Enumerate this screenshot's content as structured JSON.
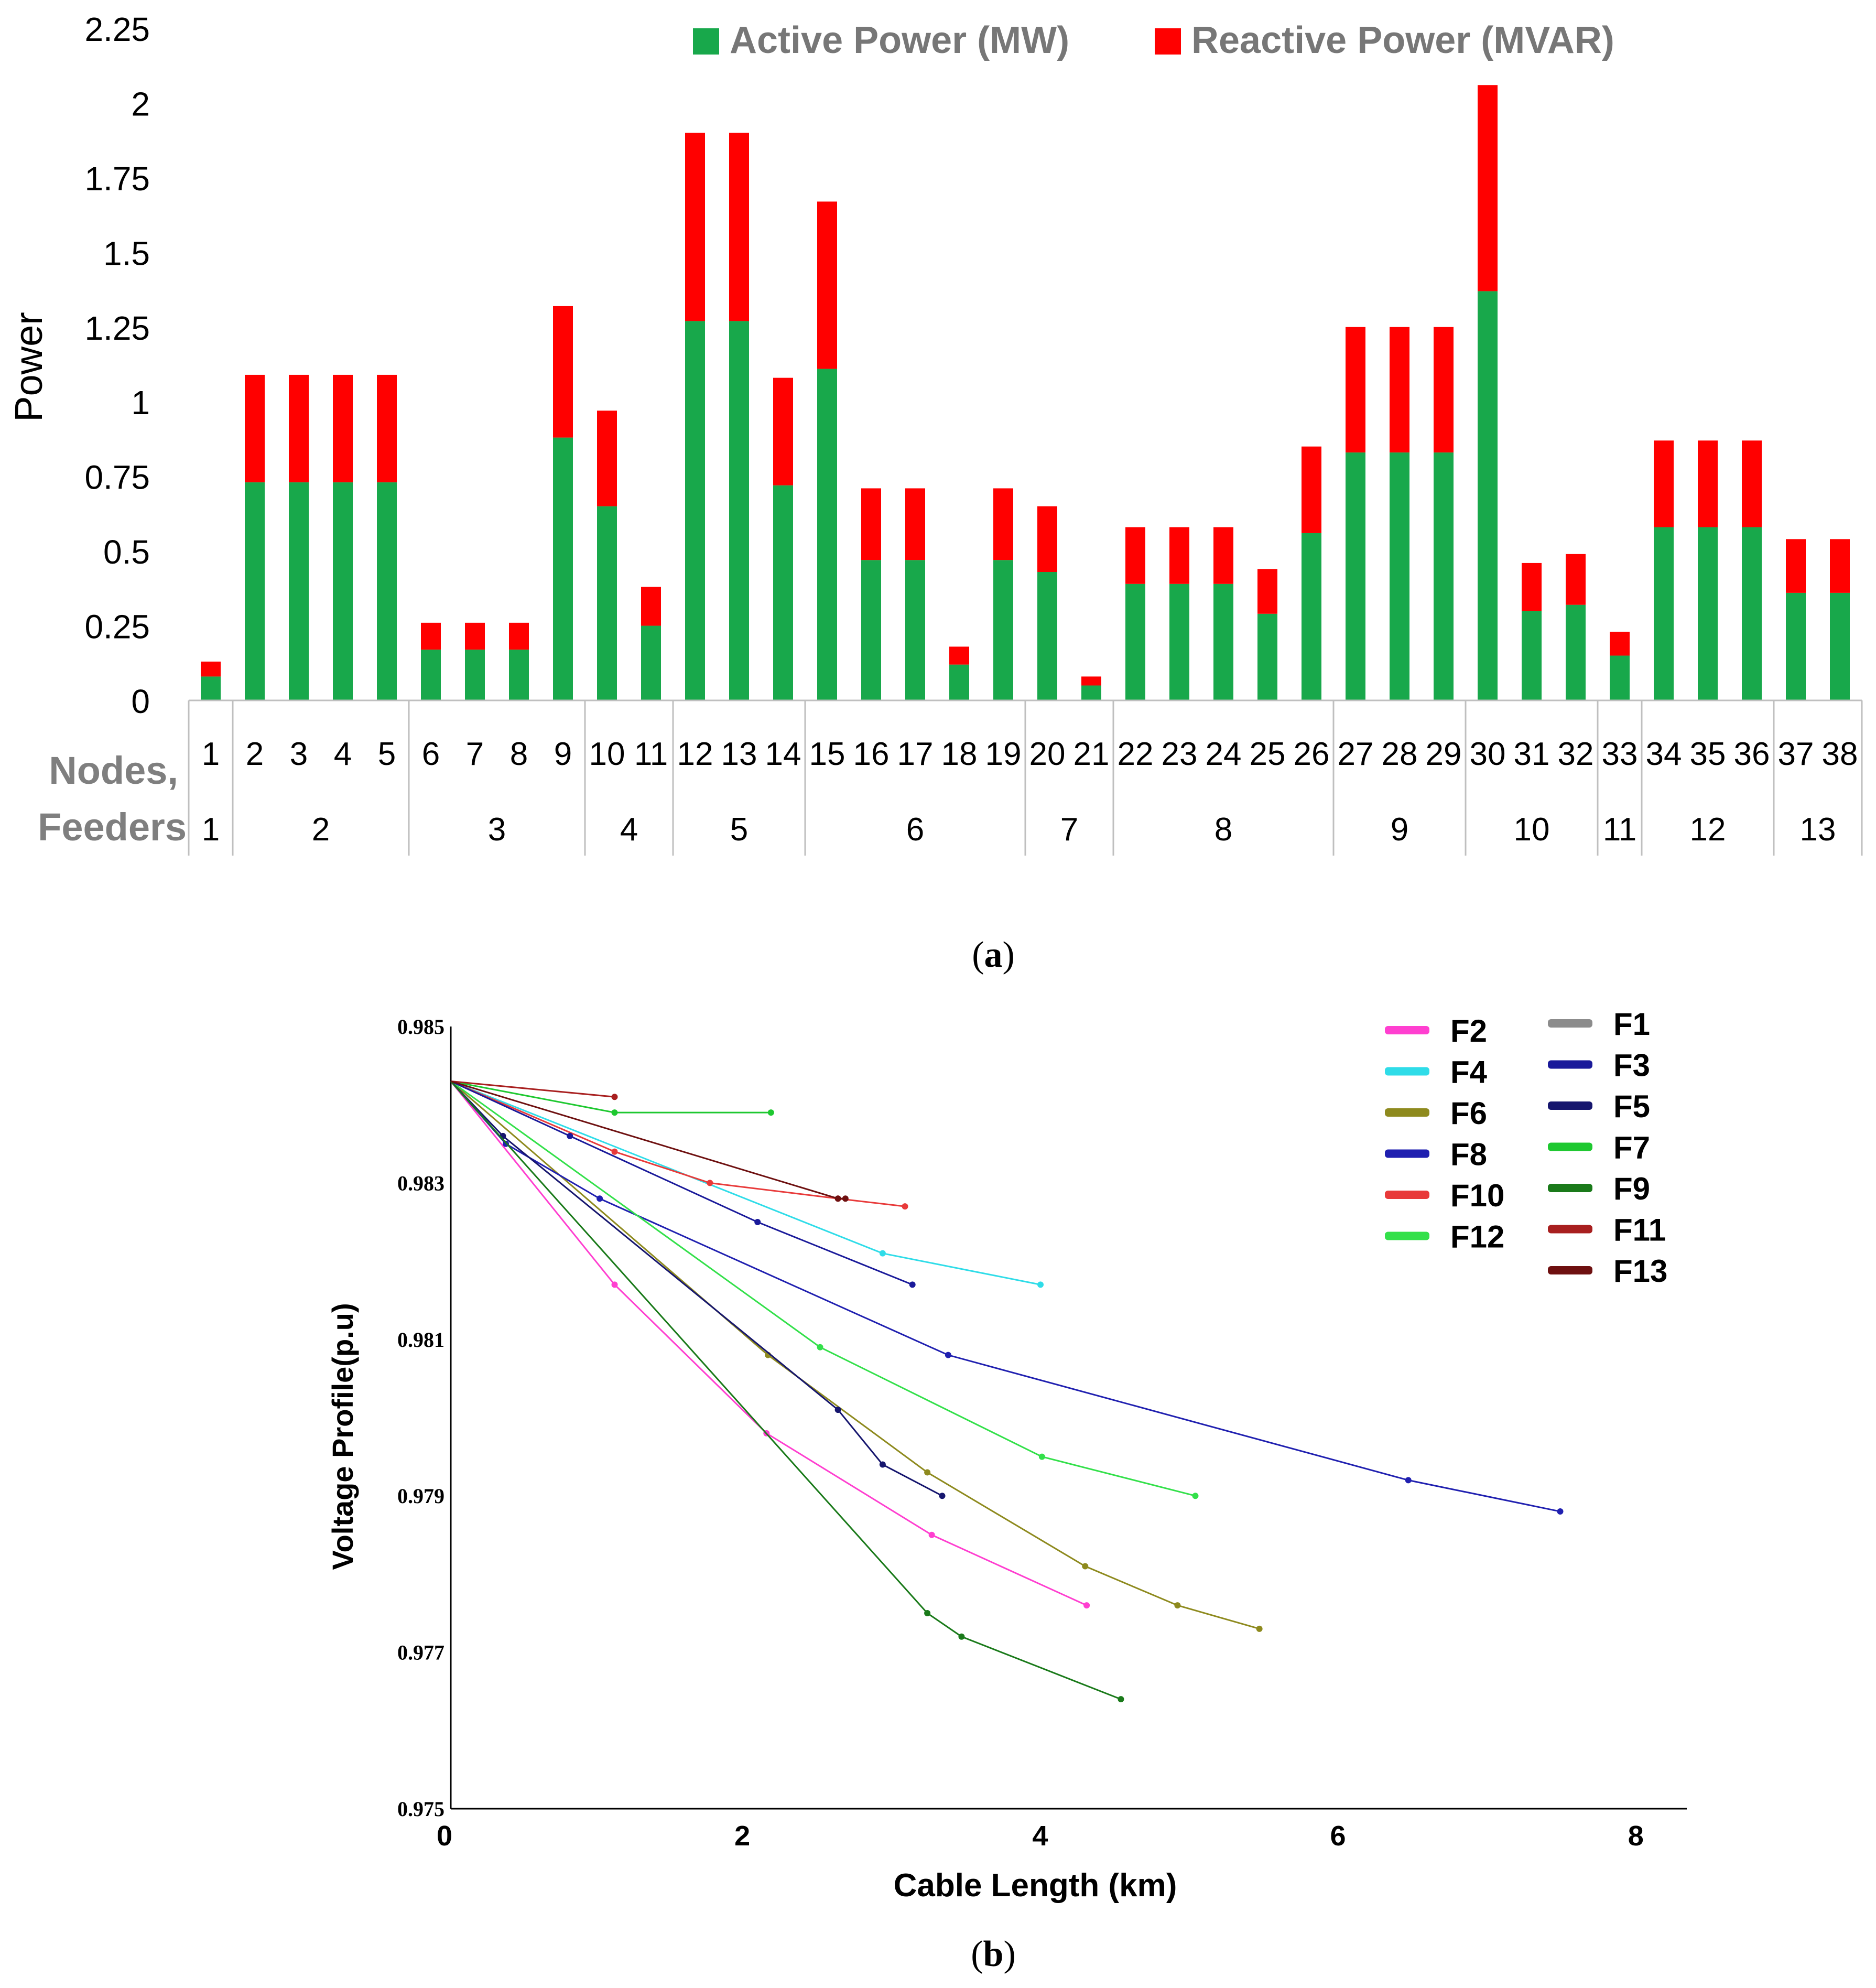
{
  "chart_data": [
    {
      "type": "bar",
      "stacked": true,
      "panel_label": "a",
      "ylabel": "Power",
      "ylim": [
        0,
        2.25
      ],
      "yticks": [
        "0",
        "0.25",
        "0.5",
        "0.75",
        "1",
        "1.25",
        "1.5",
        "1.75",
        "2",
        "2.25"
      ],
      "row_labels": [
        "Nodes,",
        "Feeders"
      ],
      "categories": [
        "1",
        "2",
        "3",
        "4",
        "5",
        "6",
        "7",
        "8",
        "9",
        "10",
        "11",
        "12",
        "13",
        "14",
        "15",
        "16",
        "17",
        "18",
        "19",
        "20",
        "21",
        "22",
        "23",
        "24",
        "25",
        "26",
        "27",
        "28",
        "29",
        "30",
        "31",
        "32",
        "33",
        "34",
        "35",
        "36",
        "37",
        "38"
      ],
      "feeders": [
        {
          "label": "1",
          "nodes": [
            1,
            1
          ]
        },
        {
          "label": "2",
          "nodes": [
            2,
            5
          ]
        },
        {
          "label": "3",
          "nodes": [
            6,
            9
          ]
        },
        {
          "label": "4",
          "nodes": [
            10,
            11
          ]
        },
        {
          "label": "5",
          "nodes": [
            12,
            14
          ]
        },
        {
          "label": "6",
          "nodes": [
            15,
            19
          ]
        },
        {
          "label": "7",
          "nodes": [
            20,
            21
          ]
        },
        {
          "label": "8",
          "nodes": [
            22,
            26
          ]
        },
        {
          "label": "9",
          "nodes": [
            27,
            29
          ]
        },
        {
          "label": "10",
          "nodes": [
            30,
            32
          ]
        },
        {
          "label": "11",
          "nodes": [
            33,
            33
          ]
        },
        {
          "label": "12",
          "nodes": [
            34,
            36
          ]
        },
        {
          "label": "13",
          "nodes": [
            37,
            38
          ]
        }
      ],
      "series": [
        {
          "name": "Active Power (MW)",
          "color": "#18A84B",
          "values": [
            0.08,
            0.73,
            0.73,
            0.73,
            0.73,
            0.17,
            0.17,
            0.17,
            0.88,
            0.65,
            0.25,
            1.27,
            1.27,
            0.72,
            1.11,
            0.47,
            0.47,
            0.12,
            0.47,
            0.43,
            0.05,
            0.39,
            0.39,
            0.39,
            0.29,
            0.56,
            0.83,
            0.83,
            0.83,
            1.37,
            0.3,
            0.32,
            0.15,
            0.58,
            0.58,
            0.58,
            0.36,
            0.36
          ]
        },
        {
          "name": "Reactive Power (MVAR)",
          "color": "#FF0000",
          "values": [
            0.05,
            0.36,
            0.36,
            0.36,
            0.36,
            0.09,
            0.09,
            0.09,
            0.44,
            0.32,
            0.13,
            0.63,
            0.63,
            0.36,
            0.56,
            0.24,
            0.24,
            0.06,
            0.24,
            0.22,
            0.03,
            0.19,
            0.19,
            0.19,
            0.15,
            0.29,
            0.42,
            0.42,
            0.42,
            0.69,
            0.16,
            0.17,
            0.08,
            0.29,
            0.29,
            0.29,
            0.18,
            0.18
          ]
        }
      ]
    },
    {
      "type": "line",
      "panel_label": "b",
      "xlabel": "Cable Length (km)",
      "ylabel": "Voltage Profile(p.u)",
      "xlim": [
        0,
        8.3
      ],
      "ylim": [
        0.975,
        0.985
      ],
      "xticks": [
        "0",
        "2",
        "4",
        "6",
        "8"
      ],
      "yticks": [
        "0.975",
        "0.977",
        "0.979",
        "0.981",
        "0.983",
        "0.985"
      ],
      "series": [
        {
          "name": "F2",
          "color": "#FF3FD0",
          "x": [
            0,
            1.1,
            2.12,
            3.23,
            4.27
          ],
          "y": [
            0.9843,
            0.9817,
            0.9798,
            0.9785,
            0.9776
          ]
        },
        {
          "name": "F4",
          "color": "#2FDCE8",
          "x": [
            0,
            2.9,
            3.96
          ],
          "y": [
            0.9843,
            0.9821,
            0.9817
          ]
        },
        {
          "name": "F6",
          "color": "#8E8A1E",
          "x": [
            0,
            2.13,
            3.2,
            4.26,
            4.88,
            5.43
          ],
          "y": [
            0.9843,
            0.9808,
            0.9793,
            0.9781,
            0.9776,
            0.9773
          ]
        },
        {
          "name": "F8",
          "color": "#2020B0",
          "x": [
            0,
            0.37,
            1.0,
            3.34,
            6.43,
            7.45
          ],
          "y": [
            0.9843,
            0.9835,
            0.9828,
            0.9808,
            0.9792,
            0.9788
          ]
        },
        {
          "name": "F10",
          "color": "#E83A3A",
          "x": [
            0,
            1.1,
            1.74,
            2.6,
            3.05
          ],
          "y": [
            0.9843,
            0.9834,
            0.983,
            0.9828,
            0.9827
          ]
        },
        {
          "name": "F12",
          "color": "#33E04A",
          "x": [
            0,
            2.48,
            3.97,
            5.0
          ],
          "y": [
            0.9843,
            0.9809,
            0.9795,
            0.979
          ]
        },
        {
          "name": "F1",
          "color": "#8C8C8C",
          "x": [],
          "y": []
        },
        {
          "name": "F3",
          "color": "#1A1A9A",
          "x": [
            0,
            0.8,
            2.06,
            3.1
          ],
          "y": [
            0.9843,
            0.9836,
            0.9825,
            0.9817
          ]
        },
        {
          "name": "F5",
          "color": "#16166E",
          "x": [
            0,
            0.35,
            2.6,
            2.9,
            3.3
          ],
          "y": [
            0.9843,
            0.9836,
            0.9801,
            0.9794,
            0.979
          ]
        },
        {
          "name": "F7",
          "color": "#1EC830",
          "x": [
            0,
            1.1,
            2.15
          ],
          "y": [
            0.9843,
            0.9839,
            0.9839
          ]
        },
        {
          "name": "F9",
          "color": "#1A7A1A",
          "x": [
            0,
            3.2,
            3.43,
            4.5
          ],
          "y": [
            0.9843,
            0.9775,
            0.9772,
            0.9764
          ]
        },
        {
          "name": "F11",
          "color": "#A81F1F",
          "x": [
            0,
            1.1
          ],
          "y": [
            0.9843,
            0.9841
          ]
        },
        {
          "name": "F13",
          "color": "#6E1010",
          "x": [
            0,
            2.6,
            2.65
          ],
          "y": [
            0.9843,
            0.9828,
            0.9828
          ]
        }
      ]
    }
  ]
}
